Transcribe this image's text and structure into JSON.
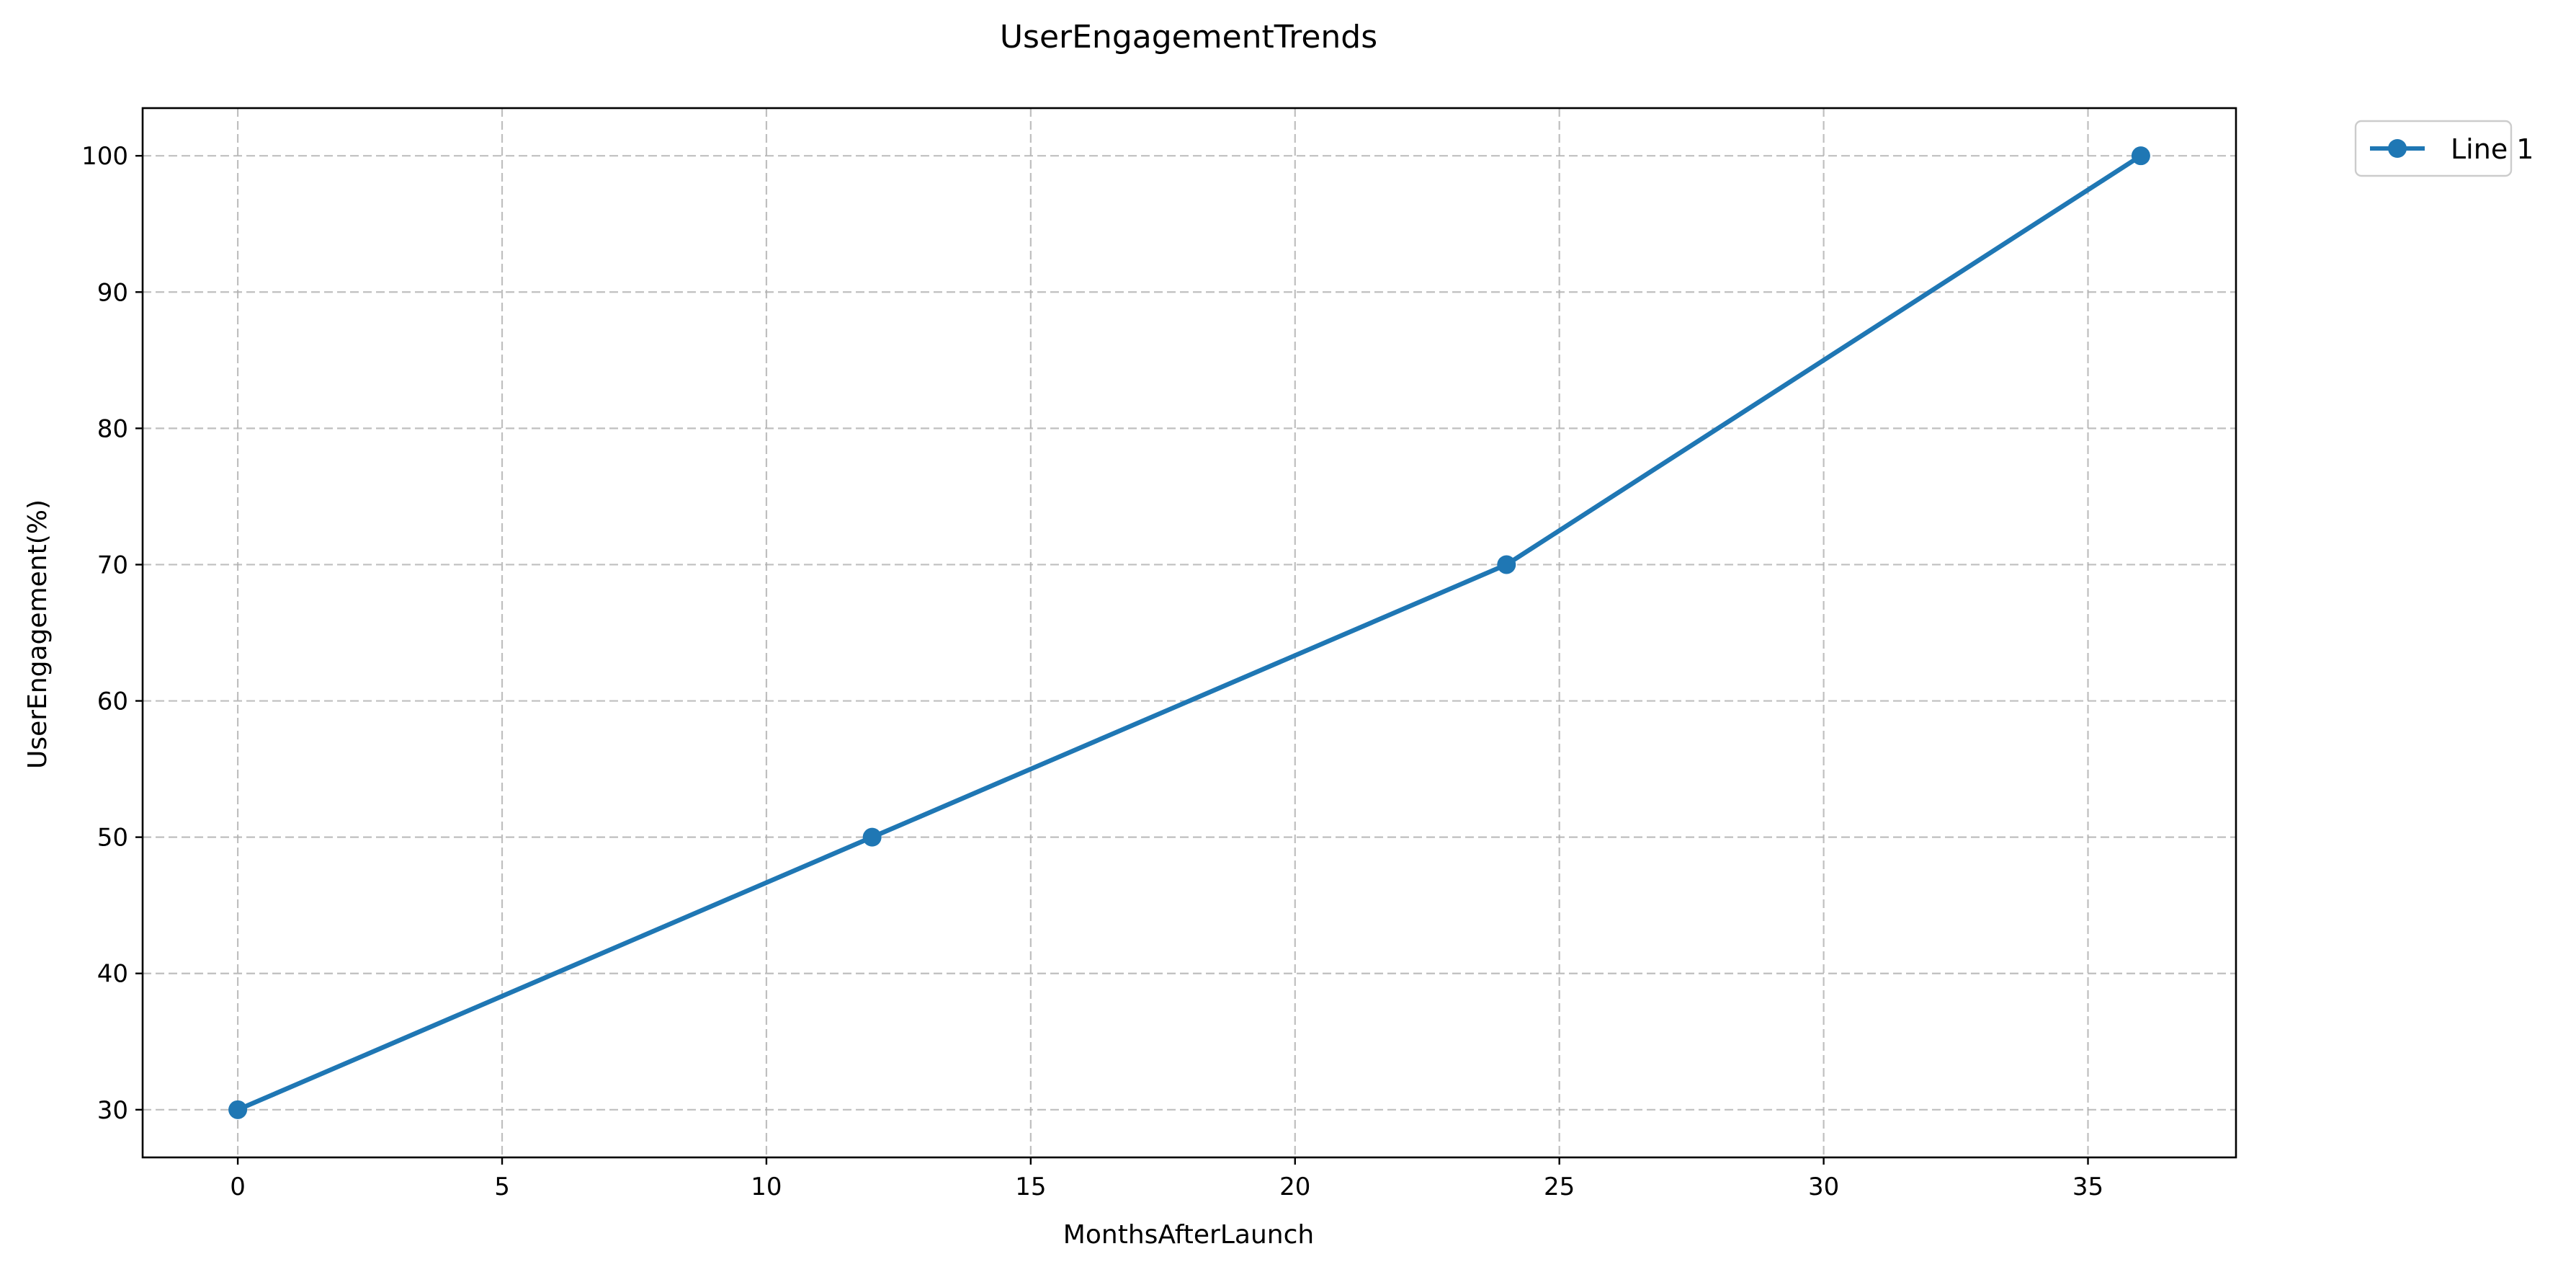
{
  "chart_data": {
    "type": "line",
    "title": "UserEngagementTrends",
    "xlabel": "MonthsAfterLaunch",
    "ylabel": "UserEngagement(%)",
    "x": [
      0,
      12,
      24,
      36
    ],
    "series": [
      {
        "name": "Line 1",
        "values": [
          30,
          50,
          70,
          100
        ],
        "color": "#1f77b4"
      }
    ],
    "xlim": [
      -1.8,
      37.8
    ],
    "ylim": [
      26.5,
      103.5
    ],
    "xticks": [
      0,
      5,
      10,
      15,
      20,
      25,
      30,
      35
    ],
    "yticks": [
      30,
      40,
      50,
      60,
      70,
      80,
      90,
      100
    ],
    "grid": true,
    "legend_position": "outside-top-right"
  }
}
